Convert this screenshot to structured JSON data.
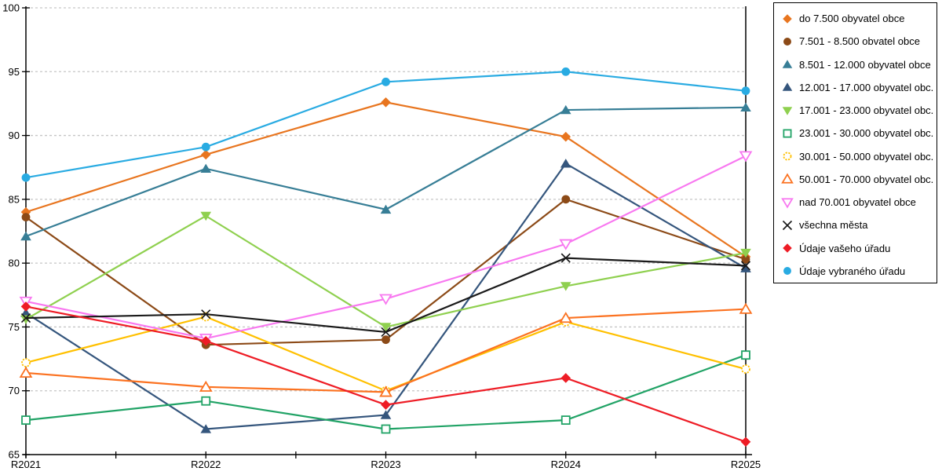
{
  "chart_data": {
    "type": "line",
    "title": "",
    "xlabel": "",
    "ylabel": "",
    "categories": [
      "R2021",
      "R2022",
      "R2023",
      "R2024",
      "R2025"
    ],
    "ylim": [
      65,
      100
    ],
    "yticks": [
      65,
      70,
      75,
      80,
      85,
      90,
      95,
      100
    ],
    "grid": "horizontal-dashed",
    "legend_position": "right",
    "series": [
      {
        "name": "do 7.500 obyvatel obce",
        "marker": "diamond",
        "fill": "solid",
        "color": "#E8751F",
        "values": [
          84.0,
          88.5,
          92.6,
          89.9,
          80.5
        ]
      },
      {
        "name": "7.501 - 8.500 obvatel obce",
        "marker": "circle",
        "fill": "solid",
        "color": "#8C4A17",
        "values": [
          83.6,
          73.6,
          74.0,
          85.0,
          80.3
        ]
      },
      {
        "name": "8.501 - 12.000 obyvatel obce",
        "marker": "triangle-up",
        "fill": "solid",
        "color": "#377E96",
        "values": [
          82.1,
          87.4,
          84.2,
          92.0,
          92.2
        ]
      },
      {
        "name": "12.001 - 17.000 obyvatel obc...",
        "marker": "triangle-up",
        "fill": "solid",
        "color": "#35567D",
        "values": [
          76.1,
          67.0,
          68.1,
          87.8,
          79.6
        ]
      },
      {
        "name": "17.001 - 23.000 obyvatel obc...",
        "marker": "triangle-down",
        "fill": "solid",
        "color": "#8FD04F",
        "values": [
          75.6,
          83.7,
          75.0,
          78.2,
          80.8
        ]
      },
      {
        "name": "23.001 - 30.000 obyvatel obc...",
        "marker": "square",
        "fill": "open",
        "color": "#21A366",
        "values": [
          67.7,
          69.2,
          67.0,
          67.7,
          72.8
        ]
      },
      {
        "name": "30.001 - 50.000 obyvatel obc...",
        "marker": "circle",
        "fill": "open-dashed",
        "color": "#FFC000",
        "values": [
          72.2,
          75.8,
          70.0,
          75.4,
          71.7
        ]
      },
      {
        "name": "50.001 - 70.000 obyvatel obc...",
        "marker": "triangle-up",
        "fill": "open",
        "color": "#FB7221",
        "values": [
          71.4,
          70.3,
          69.9,
          75.7,
          76.4
        ]
      },
      {
        "name": "nad 70.001 obyvatel obce",
        "marker": "triangle-down",
        "fill": "open",
        "color": "#F878F0",
        "values": [
          77.0,
          74.1,
          77.2,
          81.5,
          88.4
        ]
      },
      {
        "name": "všechna města",
        "marker": "x",
        "fill": "line",
        "color": "#1A1A1A",
        "values": [
          75.7,
          76.0,
          74.6,
          80.4,
          79.8
        ]
      },
      {
        "name": "Údaje vašeho úřadu",
        "marker": "diamond",
        "fill": "solid",
        "color": "#EE1C25",
        "values": [
          76.6,
          73.9,
          68.9,
          71.0,
          66.0
        ]
      },
      {
        "name": "Údaje vybraného úřadu",
        "marker": "circle",
        "fill": "solid",
        "color": "#29ABE2",
        "values": [
          86.7,
          89.1,
          94.2,
          95.0,
          93.5
        ]
      }
    ],
    "axis_color": "#000000",
    "gridline_color": "#C6C6C6",
    "tick_font_size": 13
  }
}
